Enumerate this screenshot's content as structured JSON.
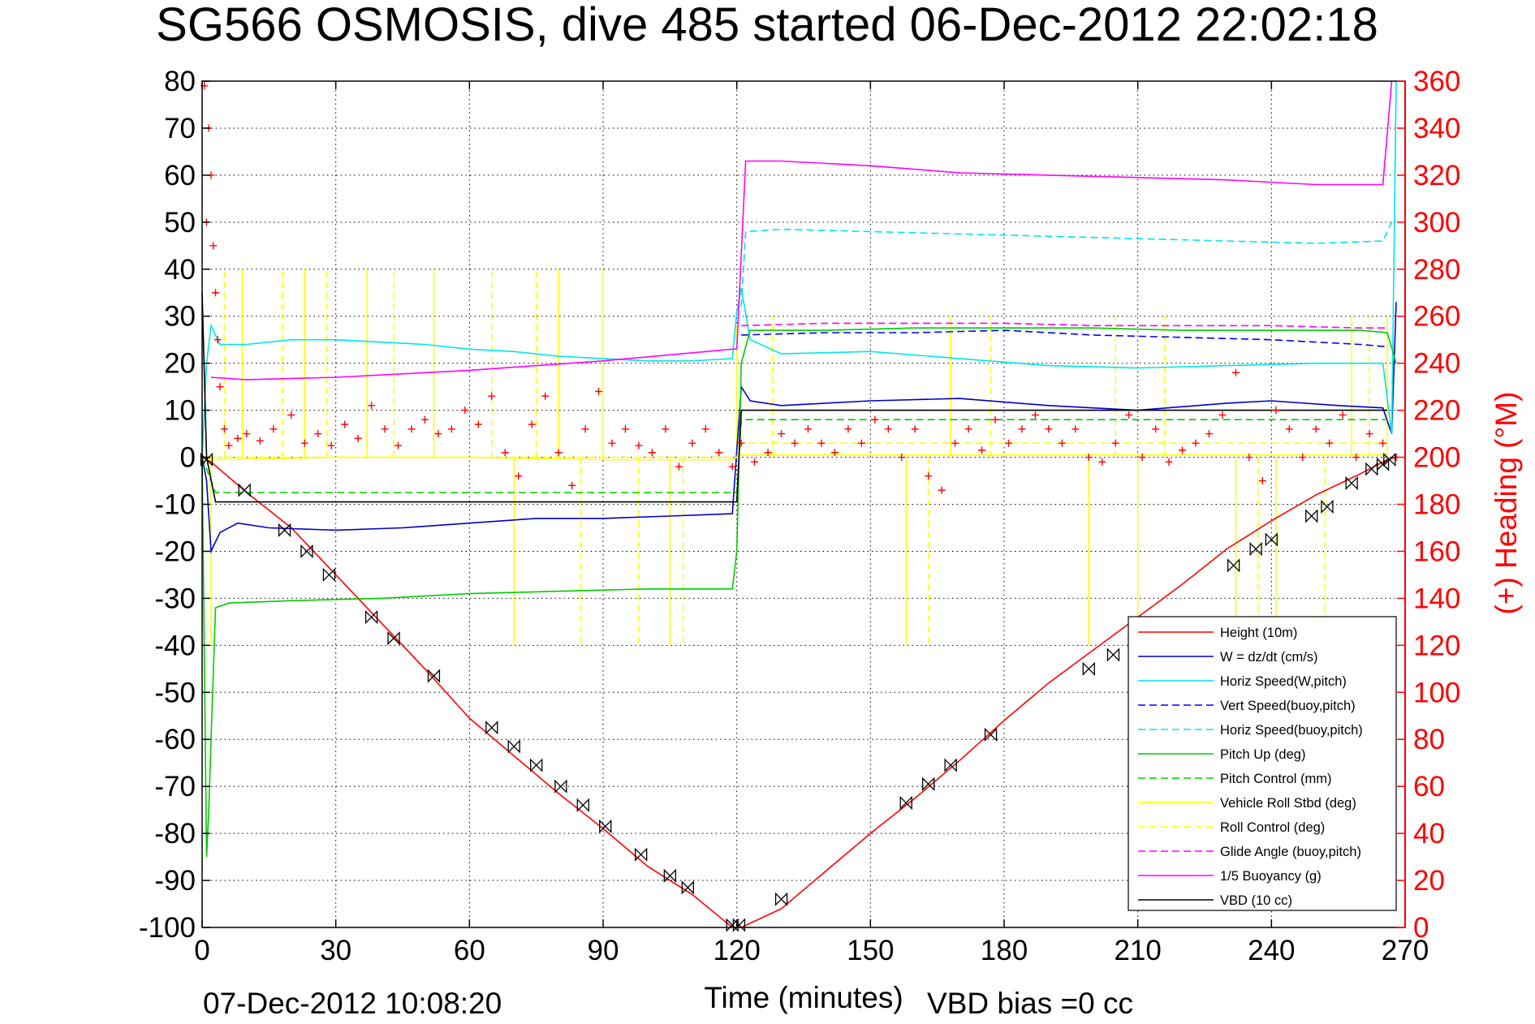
{
  "chart_data": {
    "type": "line",
    "title": "SG566 OSMOSIS, dive 485 started 06-Dec-2012 22:02:18",
    "xlabel": "Time (minutes)",
    "ylabel": "",
    "y2label": "(+) Heading (°M)",
    "footer_left": "07-Dec-2012 10:08:20",
    "footer_right": "VBD bias =0 cc",
    "xlim": [
      0,
      270
    ],
    "ylim": [
      -100,
      80
    ],
    "y2lim": [
      0,
      360
    ],
    "xticks": [
      "0",
      "30",
      "60",
      "90",
      "120",
      "150",
      "180",
      "210",
      "240",
      "270"
    ],
    "yticks": [
      "80",
      "70",
      "60",
      "50",
      "40",
      "30",
      "20",
      "10",
      "0",
      "-10",
      "-20",
      "-30",
      "-40",
      "-50",
      "-60",
      "-70",
      "-80",
      "-90",
      "-100"
    ],
    "y2ticks": [
      "360",
      "340",
      "320",
      "300",
      "280",
      "260",
      "240",
      "220",
      "200",
      "180",
      "160",
      "140",
      "120",
      "100",
      "80",
      "60",
      "40",
      "20",
      "0"
    ],
    "grid": true,
    "legend_position": "bottom-right",
    "series": [
      {
        "name": "Height (10m)",
        "color": "#ff0000",
        "style": "solid",
        "x": [
          0,
          2,
          10,
          20,
          30,
          40,
          50,
          60,
          70,
          80,
          90,
          100,
          110,
          119,
          121,
          130,
          140,
          150,
          160,
          170,
          180,
          190,
          200,
          210,
          220,
          230,
          240,
          250,
          260,
          266,
          268
        ],
        "y": [
          0,
          -1,
          -7.5,
          -15,
          -25,
          -35,
          -45,
          -55.5,
          -63.5,
          -71.5,
          -79,
          -87,
          -93,
          -100,
          -100,
          -96,
          -88,
          -80,
          -72.5,
          -64.5,
          -56,
          -48,
          -41,
          -34,
          -27,
          -19.5,
          -13.5,
          -8,
          -3.5,
          -0.5,
          0
        ]
      },
      {
        "name": "W = dz/dt (cm/s)",
        "color": "#0000cc",
        "style": "solid",
        "x": [
          0,
          1,
          2,
          4,
          8,
          15,
          30,
          45,
          60,
          75,
          90,
          105,
          119,
          121,
          123,
          130,
          150,
          170,
          190,
          210,
          230,
          240,
          255,
          265,
          267,
          268
        ],
        "y": [
          0,
          -5,
          -20,
          -16,
          -14,
          -15,
          -15.5,
          -15,
          -14,
          -13,
          -13,
          -12.5,
          -12,
          15,
          12,
          11,
          12,
          12.5,
          11,
          10,
          11.5,
          12,
          11,
          10.5,
          5,
          33
        ]
      },
      {
        "name": "Horiz Speed(W,pitch)",
        "color": "#00e5e5",
        "style": "solid",
        "x": [
          0,
          1,
          2,
          4,
          10,
          20,
          30,
          40,
          50,
          60,
          70,
          80,
          90,
          100,
          110,
          119,
          120,
          121,
          123,
          130,
          150,
          170,
          190,
          210,
          230,
          250,
          265,
          267,
          268
        ],
        "y": [
          0,
          20,
          28,
          24,
          24,
          25,
          25,
          24.5,
          24,
          23,
          22.5,
          21.5,
          21,
          20.5,
          20.5,
          21,
          31,
          36,
          25,
          22,
          22.5,
          21,
          19.5,
          19,
          19.5,
          20,
          20,
          5,
          80
        ]
      },
      {
        "name": "Vert Speed(buoy,pitch)",
        "color": "#0000ff",
        "style": "dashed",
        "x": [
          121,
          140,
          160,
          180,
          200,
          220,
          240,
          260,
          266
        ],
        "y": [
          26,
          26.5,
          26.5,
          27,
          26,
          25.5,
          25,
          24,
          23.5
        ]
      },
      {
        "name": "Horiz Speed(buoy,pitch)",
        "color": "#00e5e5",
        "style": "dashed",
        "x": [
          121,
          122,
          130,
          150,
          170,
          190,
          210,
          230,
          250,
          265,
          267
        ],
        "y": [
          32,
          48,
          48.5,
          48,
          47.5,
          47,
          46.5,
          46,
          45.5,
          46,
          50
        ]
      },
      {
        "name": "Pitch Up (deg)",
        "color": "#00cc00",
        "style": "solid",
        "x": [
          0,
          1,
          1.5,
          2,
          3,
          6,
          20,
          40,
          60,
          80,
          100,
          119,
          120,
          121,
          123,
          140,
          160,
          180,
          200,
          220,
          240,
          260,
          266,
          268
        ],
        "y": [
          0,
          -85,
          -75,
          -60,
          -32,
          -31,
          -30.5,
          -30,
          -29,
          -28.5,
          -28,
          -28,
          -20,
          20,
          27,
          27,
          27.5,
          27.5,
          27.5,
          27,
          27,
          27,
          26.5,
          20
        ]
      },
      {
        "name": "Pitch Control (mm)",
        "color": "#00cc00",
        "style": "dashed",
        "x": [
          0,
          3,
          119,
          120,
          121,
          266
        ],
        "y": [
          0,
          -7.5,
          -7.5,
          -7.5,
          8,
          8
        ]
      },
      {
        "name": "Vehicle Roll Stbd (deg)",
        "color": "#ffff00",
        "style": "solid",
        "x": [
          0,
          3,
          30,
          60,
          90,
          119,
          121,
          150,
          180,
          210,
          240,
          266
        ],
        "y": [
          0,
          -0.5,
          0,
          0,
          -0.5,
          -0.5,
          0.5,
          0.5,
          0.5,
          0.5,
          0.5,
          0.5
        ]
      },
      {
        "name": "Roll Control (deg)",
        "color": "#ffff00",
        "style": "dashed",
        "x": [
          0,
          3,
          119,
          120,
          121,
          266
        ],
        "y": [
          0,
          0,
          0,
          0,
          3,
          3
        ]
      },
      {
        "name": "Glide Angle (buoy,pitch)",
        "color": "#ff00ff",
        "style": "dashed",
        "x": [
          121,
          140,
          160,
          180,
          200,
          220,
          240,
          260,
          266
        ],
        "y": [
          28,
          28.5,
          28.5,
          28.5,
          28,
          28,
          28,
          27.5,
          27.5
        ]
      },
      {
        "name": "1/5 Buoyancy (g)",
        "color": "#ff00ff",
        "style": "solid",
        "x": [
          2,
          10,
          30,
          60,
          90,
          119,
          120,
          122,
          130,
          150,
          170,
          190,
          210,
          230,
          250,
          265,
          267
        ],
        "y": [
          17,
          16.5,
          17,
          18.5,
          20.5,
          23,
          23,
          63,
          63,
          62,
          60.5,
          60,
          59.5,
          59,
          58,
          58,
          80
        ]
      },
      {
        "name": "VBD (10 cc)",
        "color": "#000000",
        "style": "solid",
        "x": [
          0,
          1,
          3,
          119,
          120,
          121,
          123,
          266
        ],
        "y": [
          35,
          0,
          -9.5,
          -9.5,
          -9.5,
          10,
          10,
          10
        ]
      }
    ],
    "heading": {
      "name": "(+) Heading",
      "color": "#ff0000",
      "marker": "+",
      "x": [
        0.5,
        1,
        1.5,
        2,
        2.5,
        3,
        3.5,
        4,
        5,
        6,
        8,
        10,
        13,
        16,
        20,
        23,
        26,
        29,
        32,
        35,
        38,
        41,
        44,
        47,
        50,
        53,
        56,
        59,
        62,
        65,
        68,
        71,
        74,
        77,
        80,
        83,
        86,
        89,
        92,
        95,
        98,
        101,
        104,
        107,
        110,
        113,
        116,
        119,
        121,
        124,
        127,
        130,
        133,
        136,
        139,
        142,
        145,
        148,
        151,
        154,
        157,
        160,
        163,
        166,
        169,
        172,
        175,
        178,
        181,
        184,
        187,
        190,
        193,
        196,
        199,
        202,
        205,
        208,
        211,
        214,
        217,
        220,
        223,
        226,
        229,
        232,
        235,
        238,
        241,
        244,
        247,
        250,
        253,
        256,
        259,
        262,
        265,
        268
      ],
      "y": [
        358,
        300,
        340,
        320,
        290,
        270,
        250,
        230,
        212,
        205,
        208,
        210,
        207,
        212,
        218,
        206,
        210,
        205,
        214,
        208,
        222,
        212,
        205,
        212,
        216,
        210,
        212,
        220,
        214,
        226,
        202,
        192,
        214,
        226,
        202,
        188,
        212,
        228,
        206,
        212,
        205,
        202,
        212,
        196,
        206,
        212,
        202,
        196,
        206,
        198,
        202,
        210,
        206,
        212,
        206,
        202,
        212,
        206,
        216,
        212,
        200,
        212,
        192,
        186,
        206,
        212,
        203,
        216,
        206,
        212,
        218,
        212,
        206,
        212,
        200,
        198,
        206,
        218,
        200,
        212,
        198,
        203,
        206,
        210,
        218,
        236,
        200,
        190,
        220,
        212,
        200,
        212,
        206,
        218,
        200,
        210,
        206,
        200
      ]
    },
    "markers": {
      "name": "",
      "color": "#000000",
      "marker": "bowtie",
      "x": [
        1,
        9.5,
        18.5,
        23.5,
        28.5,
        38,
        43,
        52,
        65,
        70,
        75,
        80.5,
        85.5,
        90.5,
        98.5,
        105,
        109,
        119,
        120.5,
        130,
        158,
        163,
        168,
        177,
        199,
        204.5,
        231.5,
        236.5,
        240,
        249,
        252.5,
        258,
        262.5,
        265,
        266.5
      ],
      "y": [
        -0.5,
        -7,
        -15.5,
        -20,
        -25,
        -34,
        -38.5,
        -46.5,
        -57.5,
        -61.5,
        -65.5,
        -70,
        -74,
        -78.5,
        -84.5,
        -89,
        -91.5,
        -99.5,
        -99.5,
        -94,
        -73.5,
        -69.5,
        -65.5,
        -59,
        -45,
        -42,
        -23,
        -19.5,
        -17.5,
        -12.5,
        -10.5,
        -5.5,
        -2.5,
        -1.5,
        -0.5
      ]
    },
    "roll_spikes": {
      "x": [
        2,
        5,
        9,
        18,
        23,
        28,
        37,
        43,
        52,
        65,
        70,
        75,
        80,
        85,
        90,
        98,
        105,
        108,
        120,
        128,
        158,
        163,
        168,
        177,
        199,
        205,
        210,
        216,
        232,
        237,
        241,
        252,
        258,
        262,
        266
      ],
      "y": [
        -40,
        40,
        40,
        40,
        40,
        40,
        40,
        40,
        40,
        40,
        -40,
        40,
        40,
        -40,
        40,
        -40,
        -40,
        -40,
        28,
        30,
        -40,
        -40,
        30,
        30,
        -40,
        30,
        -40,
        30,
        -40,
        -40,
        -40,
        -40,
        30,
        30,
        30
      ]
    }
  }
}
